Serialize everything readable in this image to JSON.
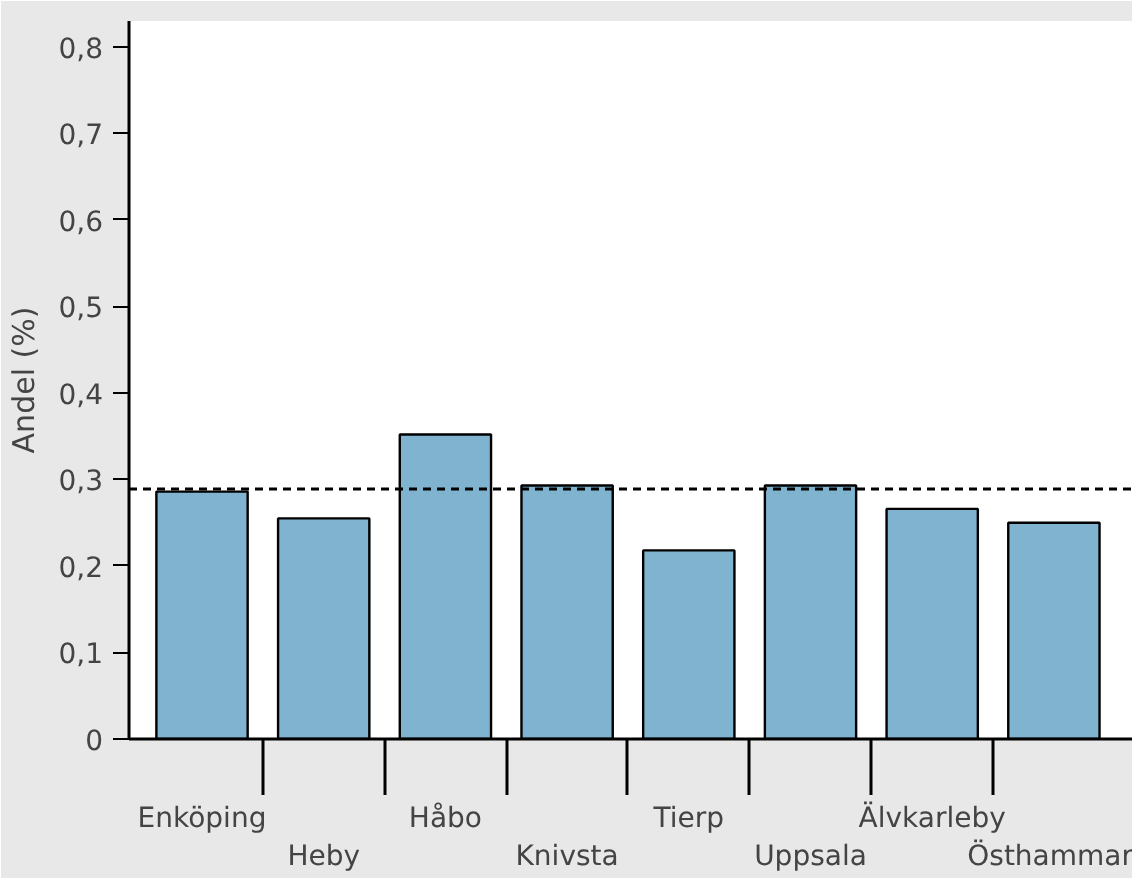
{
  "chart_data": {
    "type": "bar",
    "ylabel": "Andel (%)",
    "categories": [
      "Enköping",
      "Heby",
      "Håbo",
      "Knivsta",
      "Tierp",
      "Uppsala",
      "Älvkarleby",
      "Östhammar"
    ],
    "values": [
      0.286,
      0.255,
      0.352,
      0.293,
      0.218,
      0.293,
      0.266,
      0.25
    ],
    "color": "#7fb3cf",
    "ylim": [
      0,
      0.83
    ],
    "yticks": [
      0,
      {
        "value": 0.1,
        "label": "0,1"
      },
      {
        "value": 0.2,
        "label": "0,2"
      },
      {
        "value": 0.3,
        "label": "0,3"
      },
      {
        "value": 0.4,
        "label": "0,4"
      },
      {
        "value": 0.5,
        "label": "0,5"
      },
      {
        "value": 0.6,
        "label": "0,6"
      },
      {
        "value": 0.7,
        "label": "0,7"
      },
      {
        "value": 0.8,
        "label": "0,8"
      }
    ],
    "ref_lines": [
      {
        "axis": "y",
        "value": 0.289,
        "line_style": "dashed",
        "color": "#000000"
      }
    ]
  }
}
